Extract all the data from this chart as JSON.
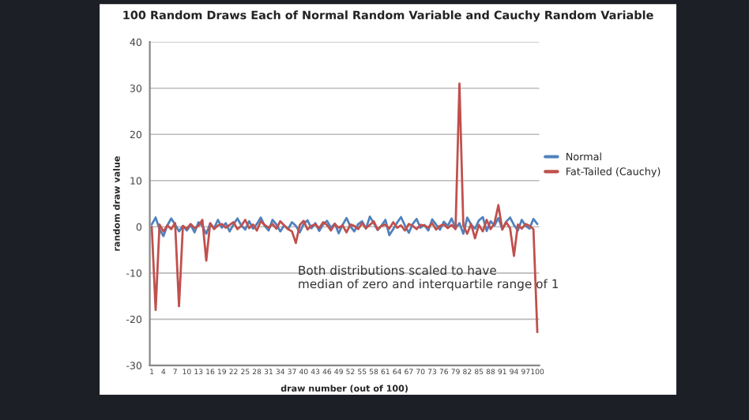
{
  "chart_data": {
    "type": "line",
    "title": "100 Random Draws Each of Normal Random Variable and Cauchy Random Variable",
    "xlabel": "draw number (out of 100)",
    "ylabel": "random draw value",
    "categories": [
      "1",
      null,
      null,
      "4",
      null,
      null,
      "7",
      null,
      null,
      "10",
      null,
      null,
      "13",
      null,
      null,
      "16",
      null,
      null,
      "19",
      null,
      null,
      "22",
      null,
      null,
      "25",
      null,
      null,
      "28",
      null,
      null,
      "31",
      null,
      null,
      "34",
      null,
      null,
      "37",
      null,
      null,
      "40",
      null,
      null,
      "43",
      null,
      null,
      "46",
      null,
      null,
      "49",
      null,
      null,
      "52",
      null,
      null,
      "55",
      null,
      null,
      "58",
      null,
      null,
      "61",
      null,
      null,
      "64",
      null,
      null,
      "67",
      null,
      null,
      "70",
      null,
      null,
      "73",
      null,
      null,
      "76",
      null,
      null,
      "79",
      null,
      null,
      "82",
      null,
      null,
      "85",
      null,
      null,
      "88",
      null,
      null,
      "91",
      null,
      null,
      "94",
      null,
      null,
      "97",
      null,
      null,
      "100"
    ],
    "series": [
      {
        "name": "Normal",
        "color": "#4f81bd",
        "values": [
          0.5,
          2,
          -0.5,
          -2,
          0.3,
          1.8,
          0.5,
          -1,
          0.2,
          -0.8,
          0.4,
          -1.2,
          1,
          0.2,
          -1.5,
          0.7,
          -0.3,
          1.5,
          -0.2,
          0.8,
          -1,
          0.5,
          1.8,
          0.3,
          -0.6,
          1.2,
          -0.4,
          0.6,
          2,
          0.2,
          -0.8,
          1.5,
          0.5,
          -1,
          0.3,
          -0.5,
          1,
          0.2,
          -1.2,
          0.6,
          1.4,
          -0.3,
          0.8,
          -0.9,
          0.5,
          1.3,
          -0.2,
          0.7,
          -1.4,
          0.4,
          1.9,
          0.1,
          -1,
          0.6,
          1.2,
          -0.4,
          2.2,
          0.8,
          -0.7,
          0.3,
          1.5,
          -1.8,
          -0.5,
          0.9,
          2.1,
          0.3,
          -1.3,
          0.6,
          1.7,
          -0.2,
          0.4,
          -0.8,
          1.6,
          0.5,
          -0.6,
          1.1,
          0.2,
          1.8,
          -0.3,
          0.8,
          -1.5,
          2,
          0.5,
          -0.4,
          1.4,
          2.1,
          -0.9,
          1.2,
          0.3,
          1.9,
          -0.5,
          1.1,
          2,
          0.4,
          -0.8,
          1.5,
          0.2,
          -0.4,
          1.7,
          0.6
        ]
      },
      {
        "name": "Fat-Tailed (Cauchy)",
        "color": "#c0504d",
        "values": [
          0,
          -18,
          0.5,
          -1,
          0.3,
          -0.5,
          0.8,
          -17.2,
          0.2,
          -0.4,
          0.6,
          -0.3,
          0.2,
          1.5,
          -7.3,
          0.8,
          -0.5,
          0.3,
          0.6,
          -0.2,
          0.4,
          1,
          -0.5,
          0.2,
          1.5,
          -0.3,
          0.5,
          -0.8,
          1.2,
          0.4,
          -0.2,
          0.6,
          -0.4,
          1.2,
          0.3,
          -0.5,
          -1,
          -3.5,
          0.4,
          1.3,
          -0.6,
          0.2,
          0.5,
          -0.3,
          1,
          0.4,
          -0.8,
          0.6,
          -0.2,
          0.3,
          -1.2,
          0.5,
          0.2,
          -0.5,
          0.8,
          -0.3,
          0.4,
          1.2,
          -0.6,
          0.2,
          0.5,
          -0.4,
          1,
          -0.2,
          0.3,
          -0.8,
          0.6,
          0.2,
          -0.5,
          0.4,
          0.3,
          -0.2,
          0.8,
          -0.6,
          0.2,
          0.5,
          -0.3,
          0.4,
          -0.5,
          31,
          0.3,
          -1.5,
          0.6,
          -2.5,
          0.4,
          -1,
          1.5,
          -0.5,
          0.8,
          4.7,
          -0.6,
          1,
          -0.3,
          -6.3,
          0.5,
          -0.4,
          0.6,
          0.2,
          -0.5,
          -22.8
        ]
      }
    ],
    "ylim": [
      -30,
      40
    ],
    "yticks": [
      -30,
      -20,
      -10,
      0,
      10,
      20,
      30,
      40
    ],
    "grid": "y",
    "legend": "right",
    "marker": "none",
    "line_style": "solid",
    "annotations": [
      "Both distributions scaled to have\nmedian of zero and interquartile range of 1"
    ]
  }
}
